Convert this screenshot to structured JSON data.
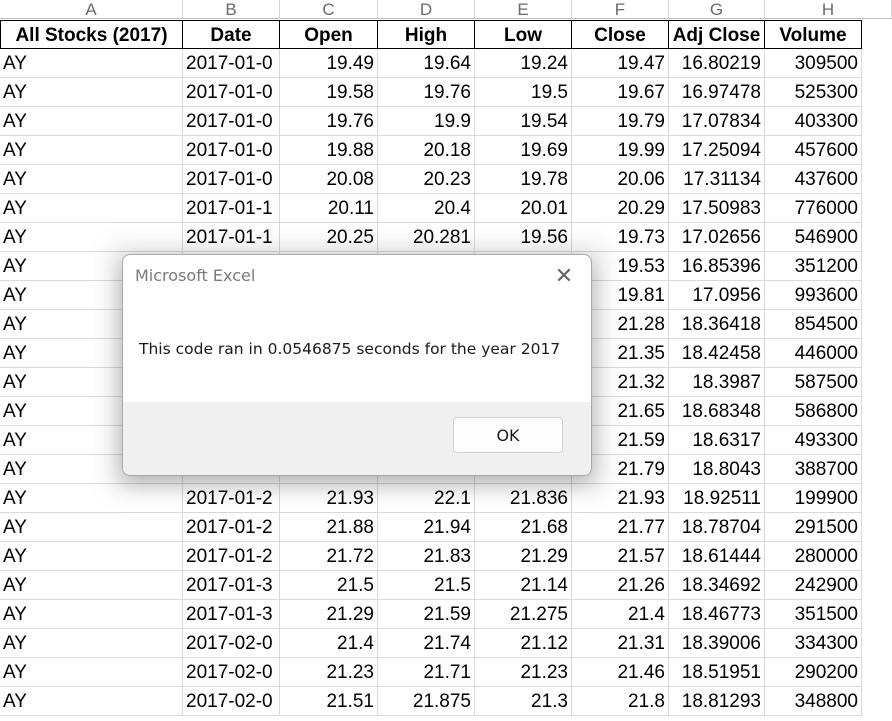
{
  "column_letters": [
    "A",
    "B",
    "C",
    "D",
    "E",
    "F",
    "G",
    "H"
  ],
  "headers": [
    "All Stocks (2017)",
    "Date",
    "Open",
    "High",
    "Low",
    "Close",
    "Adj Close",
    "Volume"
  ],
  "rows": [
    [
      "AY",
      "2017-01-0",
      "19.49",
      "19.64",
      "19.24",
      "19.47",
      "16.80219",
      "309500"
    ],
    [
      "AY",
      "2017-01-0",
      "19.58",
      "19.76",
      "19.5",
      "19.67",
      "16.97478",
      "525300"
    ],
    [
      "AY",
      "2017-01-0",
      "19.76",
      "19.9",
      "19.54",
      "19.79",
      "17.07834",
      "403300"
    ],
    [
      "AY",
      "2017-01-0",
      "19.88",
      "20.18",
      "19.69",
      "19.99",
      "17.25094",
      "457600"
    ],
    [
      "AY",
      "2017-01-0",
      "20.08",
      "20.23",
      "19.78",
      "20.06",
      "17.31134",
      "437600"
    ],
    [
      "AY",
      "2017-01-1",
      "20.11",
      "20.4",
      "20.01",
      "20.29",
      "17.50983",
      "776000"
    ],
    [
      "AY",
      "2017-01-1",
      "20.25",
      "20.281",
      "19.56",
      "19.73",
      "17.02656",
      "546900"
    ],
    [
      "AY",
      "",
      "",
      "",
      "",
      "19.53",
      "16.85396",
      "351200"
    ],
    [
      "AY",
      "",
      "",
      "",
      "",
      "19.81",
      "17.0956",
      "993600"
    ],
    [
      "AY",
      "",
      "",
      "",
      "",
      "21.28",
      "18.36418",
      "854500"
    ],
    [
      "AY",
      "",
      "",
      "",
      "",
      "21.35",
      "18.42458",
      "446000"
    ],
    [
      "AY",
      "",
      "",
      "",
      "",
      "21.32",
      "18.3987",
      "587500"
    ],
    [
      "AY",
      "",
      "",
      "",
      "",
      "21.65",
      "18.68348",
      "586800"
    ],
    [
      "AY",
      "",
      "",
      "",
      "",
      "21.59",
      "18.6317",
      "493300"
    ],
    [
      "AY",
      "",
      "",
      "",
      "",
      "21.79",
      "18.8043",
      "388700"
    ],
    [
      "AY",
      "2017-01-2",
      "21.93",
      "22.1",
      "21.836",
      "21.93",
      "18.92511",
      "199900"
    ],
    [
      "AY",
      "2017-01-2",
      "21.88",
      "21.94",
      "21.68",
      "21.77",
      "18.78704",
      "291500"
    ],
    [
      "AY",
      "2017-01-2",
      "21.72",
      "21.83",
      "21.29",
      "21.57",
      "18.61444",
      "280000"
    ],
    [
      "AY",
      "2017-01-3",
      "21.5",
      "21.5",
      "21.14",
      "21.26",
      "18.34692",
      "242900"
    ],
    [
      "AY",
      "2017-01-3",
      "21.29",
      "21.59",
      "21.275",
      "21.4",
      "18.46773",
      "351500"
    ],
    [
      "AY",
      "2017-02-0",
      "21.4",
      "21.74",
      "21.12",
      "21.31",
      "18.39006",
      "334300"
    ],
    [
      "AY",
      "2017-02-0",
      "21.23",
      "21.71",
      "21.23",
      "21.46",
      "18.51951",
      "290200"
    ],
    [
      "AY",
      "2017-02-0",
      "21.51",
      "21.875",
      "21.3",
      "21.8",
      "18.81293",
      "348800"
    ]
  ],
  "dialog": {
    "title": "Microsoft Excel",
    "message": "This code ran in 0.0546875 seconds for the year 2017",
    "ok_label": "OK",
    "close_glyph": "✕"
  }
}
